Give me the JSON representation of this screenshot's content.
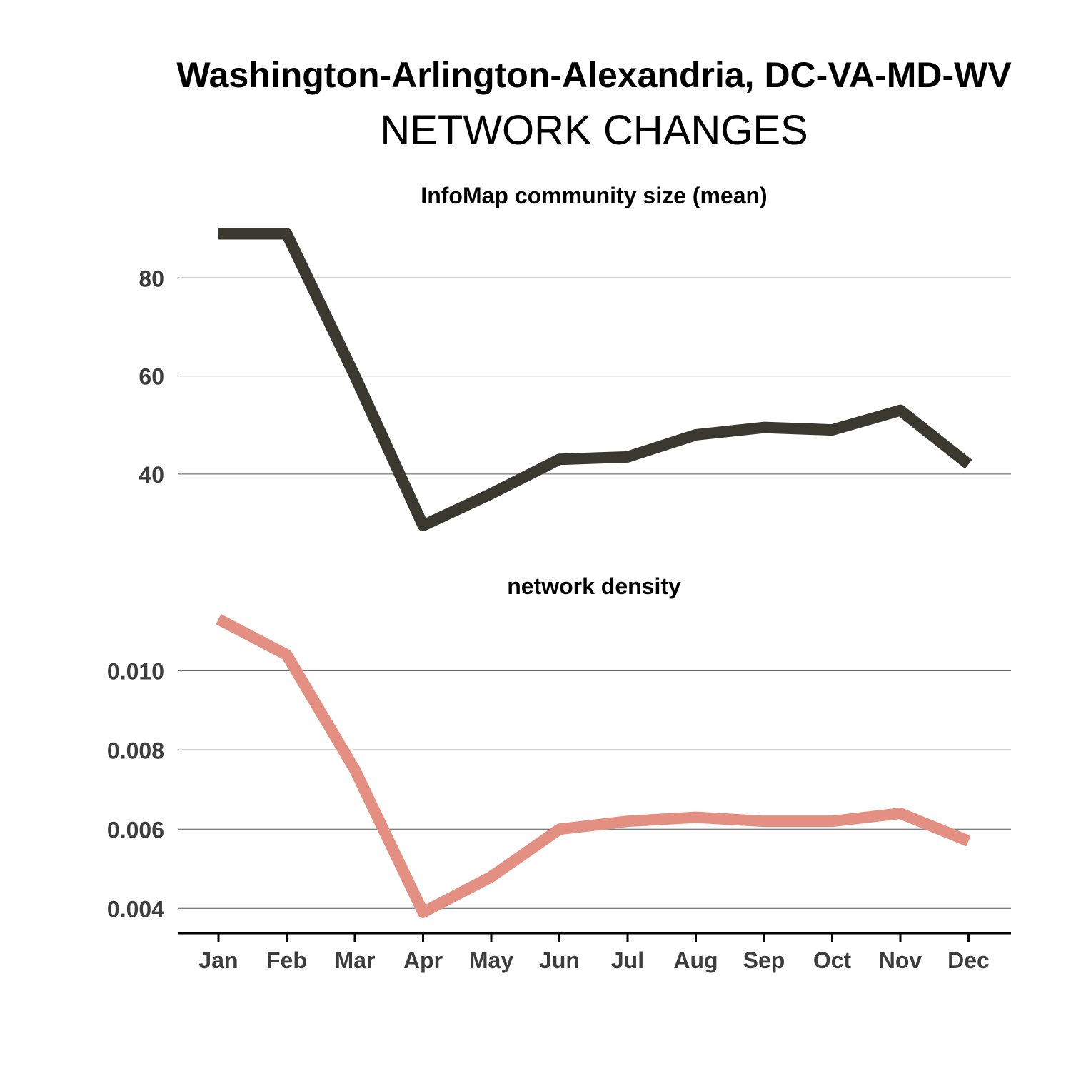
{
  "title": "Washington-Arlington-Alexandria, DC-VA-MD-WV",
  "subtitle": "NETWORK CHANGES",
  "chart_data": [
    {
      "type": "line",
      "title": "InfoMap community size (mean)",
      "xlabel": "",
      "ylabel": "",
      "categories": [
        "Jan",
        "Feb",
        "Mar",
        "Apr",
        "May",
        "Jun",
        "Jul",
        "Aug",
        "Sep",
        "Oct",
        "Nov",
        "Dec"
      ],
      "series": [
        {
          "values": [
            89,
            89,
            60,
            29.5,
            36,
            43,
            43.5,
            48,
            49.5,
            49,
            53,
            42
          ],
          "color": "#3b3830"
        }
      ],
      "yticks": [
        40,
        60,
        80
      ],
      "ytick_labels": [
        "40",
        "60",
        "80"
      ],
      "ylim": [
        26,
        93
      ],
      "grid": "horizontal"
    },
    {
      "type": "line",
      "title": "network density",
      "xlabel": "",
      "ylabel": "",
      "categories": [
        "Jan",
        "Feb",
        "Mar",
        "Apr",
        "May",
        "Jun",
        "Jul",
        "Aug",
        "Sep",
        "Oct",
        "Nov",
        "Dec"
      ],
      "series": [
        {
          "values": [
            0.0113,
            0.0104,
            0.0075,
            0.0039,
            0.0048,
            0.006,
            0.0062,
            0.0063,
            0.0062,
            0.0062,
            0.0064,
            0.0057
          ],
          "color": "#e38f82"
        }
      ],
      "yticks": [
        0.004,
        0.006,
        0.008,
        0.01
      ],
      "ytick_labels": [
        "0.004",
        "0.006",
        "0.008",
        "0.010"
      ],
      "ylim": [
        0.0035,
        0.0117
      ],
      "grid": "horizontal"
    }
  ]
}
